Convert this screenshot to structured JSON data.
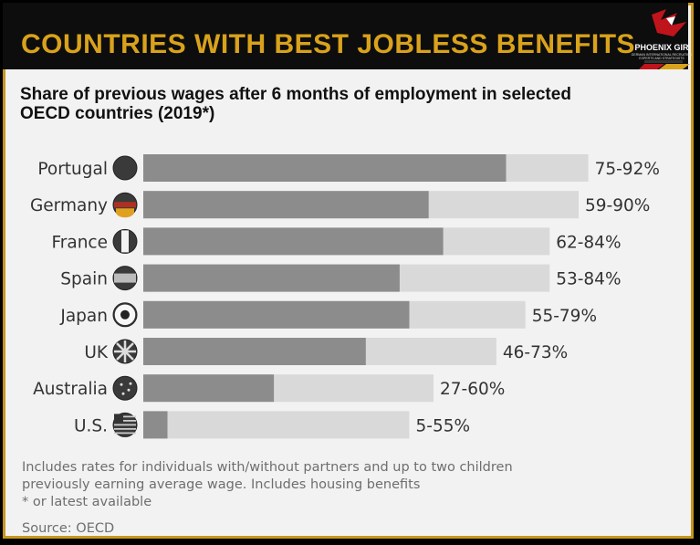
{
  "header": {
    "title": "COUNTRIES WITH BEST JOBLESS BENEFITS"
  },
  "logo": {
    "name": "PHOENIX GIR",
    "tagline1": "GERMAN INTERNATIONAL RECRUITING",
    "tagline2": "EXPERTS AND STRATEGISTS"
  },
  "colors": {
    "banner_title": "#d9a21b",
    "frame": "#c8961e",
    "bar_min": "#8c8c8c",
    "bar_max": "#d9d9d9"
  },
  "chart_data": {
    "type": "bar",
    "orientation": "horizontal",
    "title": "Share of previous wages after 6 months of employment in selected OECD countries (2019*)",
    "categories": [
      "Portugal",
      "Germany",
      "France",
      "Spain",
      "Japan",
      "UK",
      "Australia",
      "U.S."
    ],
    "flag_icons": [
      "portugal-flag-icon",
      "germany-flag-icon",
      "france-flag-icon",
      "spain-flag-icon",
      "japan-flag-icon",
      "uk-flag-icon",
      "australia-flag-icon",
      "us-flag-icon"
    ],
    "series": [
      {
        "values": [
          75,
          59,
          62,
          53,
          55,
          46,
          27,
          5
        ]
      },
      {
        "values": [
          92,
          90,
          84,
          84,
          79,
          73,
          60,
          55
        ]
      }
    ],
    "value_labels": [
      "75-92%",
      "59-90%",
      "62-84%",
      "53-84%",
      "55-79%",
      "46-73%",
      "27-60%",
      "5-55%"
    ],
    "xlim": [
      0,
      100
    ],
    "notes": [
      "Includes rates for individuals with/without partners and up to two children",
      "previously earning average wage. Includes housing benefits",
      "* or latest available"
    ],
    "source": "Source: OECD"
  }
}
